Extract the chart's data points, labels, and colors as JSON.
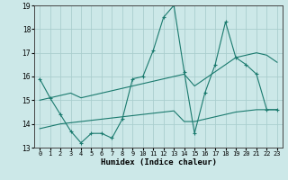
{
  "x_values": [
    0,
    1,
    2,
    3,
    4,
    5,
    6,
    7,
    8,
    9,
    10,
    11,
    12,
    13,
    14,
    15,
    16,
    17,
    18,
    19,
    20,
    21,
    22,
    23
  ],
  "line1_y": [
    15.9,
    15.1,
    14.4,
    13.7,
    13.2,
    13.6,
    13.6,
    13.4,
    14.2,
    15.9,
    16.0,
    17.1,
    18.5,
    19.0,
    16.2,
    13.6,
    15.3,
    16.5,
    18.3,
    16.8,
    16.5,
    16.1,
    14.6,
    14.6
  ],
  "line2_y": [
    13.8,
    13.9,
    14.0,
    14.05,
    14.1,
    14.15,
    14.2,
    14.25,
    14.3,
    14.35,
    14.4,
    14.45,
    14.5,
    14.55,
    14.1,
    14.1,
    14.2,
    14.3,
    14.4,
    14.5,
    14.55,
    14.6,
    14.6,
    14.6
  ],
  "line3_y": [
    15.0,
    15.1,
    15.2,
    15.3,
    15.1,
    15.2,
    15.3,
    15.4,
    15.5,
    15.6,
    15.7,
    15.8,
    15.9,
    16.0,
    16.1,
    15.6,
    15.9,
    16.2,
    16.5,
    16.8,
    16.9,
    17.0,
    16.9,
    16.6
  ],
  "color": "#1a7a6e",
  "bg_color": "#cce8e8",
  "grid_color": "#aacece",
  "xlabel": "Humidex (Indice chaleur)",
  "ylim": [
    13,
    19
  ],
  "xlim": [
    -0.5,
    23.5
  ],
  "yticks": [
    13,
    14,
    15,
    16,
    17,
    18,
    19
  ],
  "xticks": [
    0,
    1,
    2,
    3,
    4,
    5,
    6,
    7,
    8,
    9,
    10,
    11,
    12,
    13,
    14,
    15,
    16,
    17,
    18,
    19,
    20,
    21,
    22,
    23
  ]
}
